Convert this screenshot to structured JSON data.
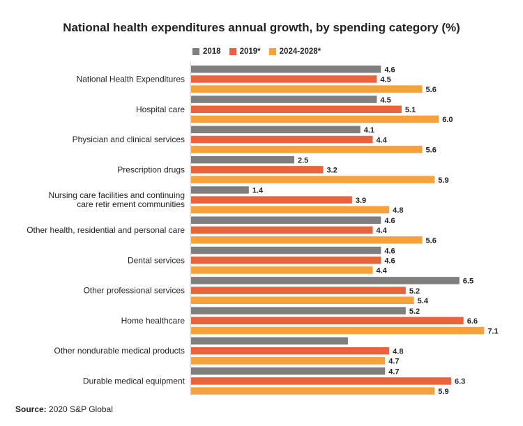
{
  "chart_data": {
    "type": "bar",
    "orientation": "horizontal",
    "title": "National health expenditures annual growth, by spending category (%)",
    "categories": [
      [
        "National Health Expenditures"
      ],
      [
        "Hospital care"
      ],
      [
        "Physician and clinical services"
      ],
      [
        "Prescription drugs"
      ],
      [
        "Nursing care facilities and continuing",
        "care  retir ement communities"
      ],
      [
        "Other health, residential and personal care"
      ],
      [
        "Dental services"
      ],
      [
        "Other professional services"
      ],
      [
        "Home healthcare"
      ],
      [
        "Other nondurable medical products"
      ],
      [
        "Durable medical equipment"
      ]
    ],
    "series": [
      {
        "name": "2018",
        "color": "#7f7f7f",
        "values": [
          4.6,
          4.5,
          4.1,
          2.5,
          1.4,
          4.6,
          4.6,
          6.5,
          5.2,
          3.8,
          4.7
        ],
        "labels": [
          "4.6",
          "4.5",
          "4.1",
          "2.5",
          "1.4",
          "4.6",
          "4.6",
          "6.5",
          "5.2",
          "",
          "4.7"
        ]
      },
      {
        "name": "2019*",
        "color": "#e8643c",
        "values": [
          4.5,
          5.1,
          4.4,
          3.2,
          3.9,
          4.4,
          4.6,
          5.2,
          6.6,
          4.8,
          6.3
        ],
        "labels": [
          "4.5",
          "5.1",
          "4.4",
          "3.2",
          "3.9",
          "4.4",
          "4.6",
          "5.2",
          "6.6",
          "4.8",
          "6.3"
        ]
      },
      {
        "name": "2024-2028*",
        "color": "#f7a13a",
        "values": [
          5.6,
          6.0,
          5.6,
          5.9,
          4.8,
          5.6,
          4.4,
          5.4,
          7.1,
          4.7,
          5.9
        ],
        "labels": [
          "5.6",
          "6.0",
          "5.6",
          "5.9",
          "4.8",
          "5.6",
          "4.4",
          "5.4",
          "7.1",
          "4.7",
          "5.9"
        ]
      }
    ],
    "xlim": [
      0,
      7.6
    ],
    "grid": false,
    "legend_position": "top-left"
  },
  "source": {
    "label": "Source:",
    "text": "2020 S&P Global"
  }
}
